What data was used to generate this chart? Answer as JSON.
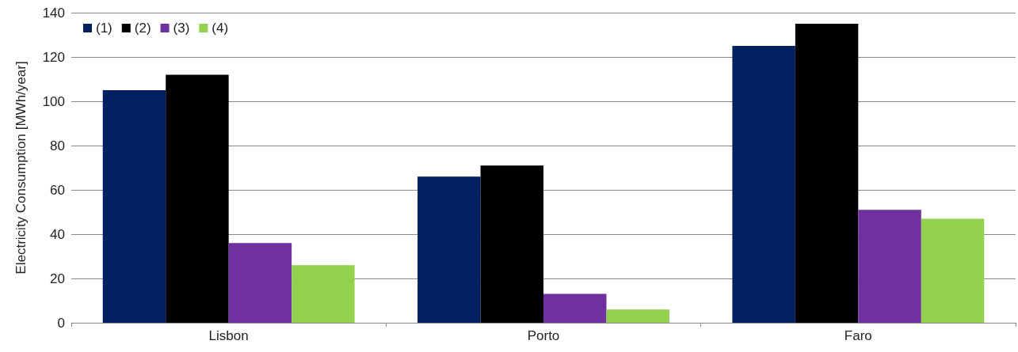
{
  "chart_data": {
    "type": "bar",
    "ylabel": "Electricity Consumption [MWh/year]",
    "categories": [
      "Lisbon",
      "Porto",
      "Faro"
    ],
    "series": [
      {
        "name": "(1)",
        "color": "#002060",
        "values": [
          105,
          66,
          125
        ]
      },
      {
        "name": "(2)",
        "color": "#000000",
        "values": [
          112,
          71,
          135
        ]
      },
      {
        "name": "(3)",
        "color": "#7030a0",
        "values": [
          36,
          13,
          51
        ]
      },
      {
        "name": "(4)",
        "color": "#92d050",
        "values": [
          26,
          6,
          47
        ]
      }
    ],
    "ylim": [
      0,
      140
    ],
    "yticks": [
      0,
      20,
      40,
      60,
      80,
      100,
      120,
      140
    ],
    "grid": "y",
    "legend": "top left"
  }
}
